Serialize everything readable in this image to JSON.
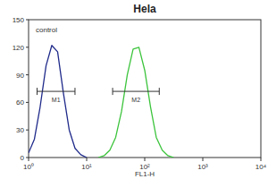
{
  "chart_data": {
    "type": "line",
    "title": "Hela",
    "x_label": "FL1-H",
    "log": "x",
    "x": [
      1,
      1.26,
      1.58,
      2,
      2.51,
      3.16,
      3.98,
      5.01,
      6.31,
      7.94,
      10,
      12.6,
      15.8,
      20,
      25.1,
      31.6,
      39.8,
      50.1,
      63.1,
      79.4,
      100,
      126,
      158,
      200,
      251,
      316,
      398,
      501,
      631,
      794,
      1000
    ],
    "series": [
      {
        "name": "control",
        "color": "#1f2a8a",
        "values": [
          5,
          20,
          55,
          100,
          122,
          115,
          70,
          30,
          10,
          3,
          0,
          null,
          null,
          null,
          null,
          null,
          null,
          null,
          null,
          null,
          null,
          null,
          null,
          null,
          null,
          null,
          null,
          null,
          null,
          null,
          null
        ]
      },
      {
        "color": "#3cc43c",
        "values": [
          null,
          null,
          null,
          null,
          null,
          null,
          null,
          null,
          null,
          null,
          null,
          null,
          0,
          2,
          8,
          22,
          50,
          90,
          118,
          120,
          95,
          55,
          22,
          8,
          2,
          0,
          null,
          null,
          null,
          null,
          null
        ]
      }
    ],
    "xlim": [
      1,
      10000
    ],
    "xticks": [
      {
        "value": 1,
        "label": "10⁰"
      },
      {
        "value": 10,
        "label": "10¹"
      },
      {
        "value": 100,
        "label": "10²"
      },
      {
        "value": 1000,
        "label": "10³"
      },
      {
        "value": 10000,
        "label": "10⁴"
      }
    ],
    "ylim": [
      0,
      150
    ],
    "yticks": [
      0,
      30,
      60,
      90,
      120,
      150
    ],
    "annotations": [
      {
        "text": "M1",
        "x": [
          1.4,
          6.3
        ],
        "y": 72
      },
      {
        "text": "M2",
        "x": [
          28,
          178
        ],
        "y": 72
      }
    ]
  }
}
